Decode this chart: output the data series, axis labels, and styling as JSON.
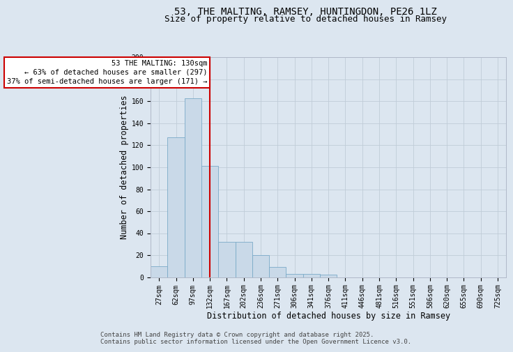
{
  "title_line1": "53, THE MALTING, RAMSEY, HUNTINGDON, PE26 1LZ",
  "title_line2": "Size of property relative to detached houses in Ramsey",
  "xlabel": "Distribution of detached houses by size in Ramsey",
  "ylabel": "Number of detached properties",
  "categories": [
    "27sqm",
    "62sqm",
    "97sqm",
    "132sqm",
    "167sqm",
    "202sqm",
    "236sqm",
    "271sqm",
    "306sqm",
    "341sqm",
    "376sqm",
    "411sqm",
    "446sqm",
    "481sqm",
    "516sqm",
    "551sqm",
    "586sqm",
    "620sqm",
    "655sqm",
    "690sqm",
    "725sqm"
  ],
  "values": [
    10,
    127,
    163,
    101,
    32,
    32,
    20,
    9,
    3,
    3,
    2,
    0,
    0,
    0,
    0,
    0,
    0,
    0,
    0,
    0,
    0
  ],
  "bar_color": "#c9d9e8",
  "bar_edge_color": "#7aaac8",
  "vline_index": 3,
  "vline_color": "#cc0000",
  "annotation_line1": "53 THE MALTING: 130sqm",
  "annotation_line2": "← 63% of detached houses are smaller (297)",
  "annotation_line3": "37% of semi-detached houses are larger (171) →",
  "grid_color": "#c0ccd8",
  "background_color": "#dce6f0",
  "footer_text": "Contains HM Land Registry data © Crown copyright and database right 2025.\nContains public sector information licensed under the Open Government Licence v3.0.",
  "ylim": [
    0,
    200
  ],
  "yticks": [
    0,
    20,
    40,
    60,
    80,
    100,
    120,
    140,
    160,
    180,
    200
  ],
  "title_fontsize": 10,
  "subtitle_fontsize": 9,
  "axis_label_fontsize": 8.5,
  "tick_fontsize": 7,
  "annotation_fontsize": 7.5,
  "footer_fontsize": 6.5
}
